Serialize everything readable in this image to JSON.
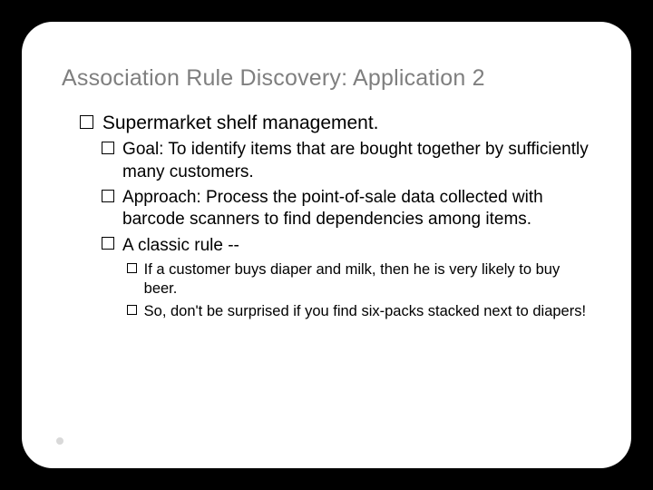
{
  "title": "Association Rule Discovery: Application 2",
  "lvl1": {
    "text": "Supermarket shelf management."
  },
  "lvl2": [
    {
      "lead": "Goal:",
      "rest": " To identify items that are bought together by sufficiently many customers."
    },
    {
      "lead": "Approach:",
      "rest": " Process the point-of-sale data collected with barcode scanners to find dependencies among items."
    },
    {
      "lead": "A classic rule --",
      "rest": ""
    }
  ],
  "lvl3": [
    {
      "text": "If a customer buys diaper and milk, then he is very likely to buy beer."
    },
    {
      "text": "So, don't be surprised if you find six-packs stacked next to diapers!"
    }
  ]
}
